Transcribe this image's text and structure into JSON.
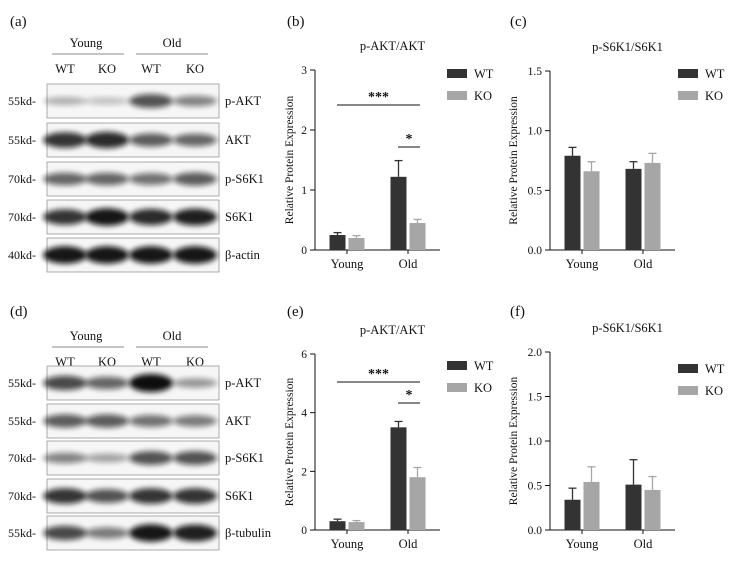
{
  "panels": {
    "a": "(a)",
    "b": "(b)",
    "c": "(c)",
    "d": "(d)",
    "e": "(e)",
    "f": "(f)"
  },
  "blots": [
    {
      "groups": [
        "Young",
        "Old"
      ],
      "lanes": [
        "WT",
        "KO",
        "WT",
        "KO"
      ],
      "rows": [
        {
          "size": "55kd-",
          "label": "p-AKT"
        },
        {
          "size": "55kd-",
          "label": "AKT"
        },
        {
          "size": "70kd-",
          "label": "p-S6K1"
        },
        {
          "size": "70kd-",
          "label": "S6K1"
        },
        {
          "size": "40kd-",
          "label": "β-actin"
        }
      ]
    },
    {
      "groups": [
        "Young",
        "Old"
      ],
      "lanes": [
        "WT",
        "KO",
        "WT",
        "KO"
      ],
      "rows": [
        {
          "size": "55kd-",
          "label": "p-AKT"
        },
        {
          "size": "55kd-",
          "label": "AKT"
        },
        {
          "size": "70kd-",
          "label": "p-S6K1"
        },
        {
          "size": "70kd-",
          "label": "S6K1"
        },
        {
          "size": "55kd-",
          "label": "β-tubulin"
        }
      ]
    }
  ],
  "chart_data": [
    {
      "id": "b",
      "type": "bar",
      "title": "p-AKT/AKT",
      "ylabel": "Relative Protein Expression",
      "xlabel": "",
      "categories": [
        "Young",
        "Old"
      ],
      "ylim": [
        0,
        3
      ],
      "yticks": [
        "0",
        "1",
        "2",
        "3"
      ],
      "series": [
        {
          "name": "WT",
          "values": [
            0.25,
            1.22
          ],
          "errors": [
            0.04,
            0.27
          ]
        },
        {
          "name": "KO",
          "values": [
            0.2,
            0.45
          ],
          "errors": [
            0.04,
            0.06
          ]
        }
      ],
      "annotations": [
        "***",
        "*"
      ],
      "legend": "top-right",
      "colors": {
        "WT": "#333333",
        "KO": "#a6a6a6"
      }
    },
    {
      "id": "c",
      "type": "bar",
      "title": "p-S6K1/S6K1",
      "ylabel": "Relative Protein Expression",
      "xlabel": "",
      "categories": [
        "Young",
        "Old"
      ],
      "ylim": [
        0,
        1.5
      ],
      "yticks": [
        "0.0",
        "0.5",
        "1.0",
        "1.5"
      ],
      "series": [
        {
          "name": "WT",
          "values": [
            0.79,
            0.68
          ],
          "errors": [
            0.07,
            0.06
          ]
        },
        {
          "name": "KO",
          "values": [
            0.66,
            0.73
          ],
          "errors": [
            0.08,
            0.08
          ]
        }
      ],
      "annotations": [],
      "legend": "top-right",
      "colors": {
        "WT": "#333333",
        "KO": "#a6a6a6"
      }
    },
    {
      "id": "e",
      "type": "bar",
      "title": "p-AKT/AKT",
      "ylabel": "Relative Protein Expression",
      "xlabel": "",
      "categories": [
        "Young",
        "Old"
      ],
      "ylim": [
        0,
        6
      ],
      "yticks": [
        "0",
        "2",
        "4",
        "6"
      ],
      "series": [
        {
          "name": "WT",
          "values": [
            0.3,
            3.5
          ],
          "errors": [
            0.07,
            0.2
          ]
        },
        {
          "name": "KO",
          "values": [
            0.27,
            1.8
          ],
          "errors": [
            0.05,
            0.33
          ]
        }
      ],
      "annotations": [
        "***",
        "*"
      ],
      "legend": "top-right",
      "colors": {
        "WT": "#333333",
        "KO": "#a6a6a6"
      }
    },
    {
      "id": "f",
      "type": "bar",
      "title": "p-S6K1/S6K1",
      "ylabel": "Relative Protein Expression",
      "xlabel": "",
      "categories": [
        "Young",
        "Old"
      ],
      "ylim": [
        0,
        2
      ],
      "yticks": [
        "0.0",
        "0.5",
        "1.0",
        "1.5",
        "2.0"
      ],
      "series": [
        {
          "name": "WT",
          "values": [
            0.34,
            0.51
          ],
          "errors": [
            0.13,
            0.28
          ]
        },
        {
          "name": "KO",
          "values": [
            0.54,
            0.45
          ],
          "errors": [
            0.17,
            0.15
          ]
        }
      ],
      "annotations": [],
      "legend": "top-right",
      "colors": {
        "WT": "#333333",
        "KO": "#a6a6a6"
      }
    }
  ]
}
